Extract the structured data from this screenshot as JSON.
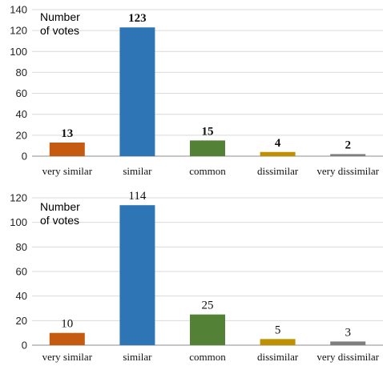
{
  "chart_data": [
    {
      "type": "bar",
      "ylabel": "Number of votes",
      "categories": [
        "very similar",
        "similar",
        "common",
        "dissimilar",
        "very dissimilar"
      ],
      "values": [
        13,
        123,
        15,
        4,
        2
      ],
      "colors": [
        "#c55a11",
        "#2e75b6",
        "#538135",
        "#bf9000",
        "#7f7f7f"
      ],
      "ylim": [
        0,
        140
      ],
      "yticks": [
        0,
        20,
        40,
        60,
        80,
        100,
        120,
        140
      ],
      "grid": true,
      "bold_labels": true
    },
    {
      "type": "bar",
      "ylabel": "Number of votes",
      "categories": [
        "very similar",
        "similar",
        "common",
        "dissimilar",
        "very dissimilar"
      ],
      "values": [
        10,
        114,
        25,
        5,
        3
      ],
      "colors": [
        "#c55a11",
        "#2e75b6",
        "#538135",
        "#bf9000",
        "#7f7f7f"
      ],
      "ylim": [
        0,
        120
      ],
      "yticks": [
        0,
        20,
        40,
        60,
        80,
        100,
        120
      ],
      "grid": true,
      "bold_labels": false
    }
  ]
}
